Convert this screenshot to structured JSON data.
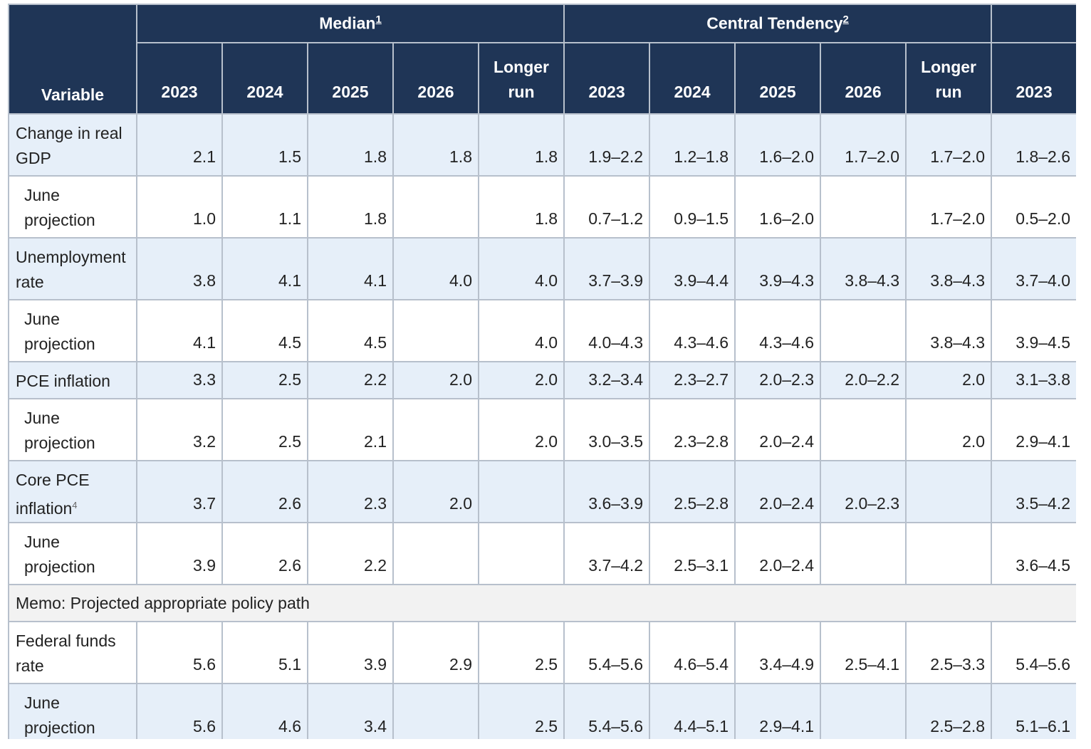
{
  "header": {
    "variable": "Variable",
    "median": "Median",
    "median_note": "1",
    "central": "Central Tendency",
    "central_note": "2",
    "years": [
      "2023",
      "2024",
      "2025",
      "2026",
      "Longer run",
      "2023",
      "2024",
      "2025",
      "2026",
      "Longer run",
      "2023"
    ]
  },
  "rows": [
    {
      "label": "Change in real GDP",
      "values": [
        "2.1",
        "1.5",
        "1.8",
        "1.8",
        "1.8",
        "1.9–2.2",
        "1.2–1.8",
        "1.6–2.0",
        "1.7–2.0",
        "1.7–2.0",
        "1.8–2.6"
      ]
    },
    {
      "label": "June projection",
      "values": [
        "1.0",
        "1.1",
        "1.8",
        "",
        "1.8",
        "0.7–1.2",
        "0.9–1.5",
        "1.6–2.0",
        "",
        "1.7–2.0",
        "0.5–2.0"
      ]
    },
    {
      "label": "Unemployment rate",
      "values": [
        "3.8",
        "4.1",
        "4.1",
        "4.0",
        "4.0",
        "3.7–3.9",
        "3.9–4.4",
        "3.9–4.3",
        "3.8–4.3",
        "3.8–4.3",
        "3.7–4.0"
      ]
    },
    {
      "label": "June projection",
      "values": [
        "4.1",
        "4.5",
        "4.5",
        "",
        "4.0",
        "4.0–4.3",
        "4.3–4.6",
        "4.3–4.6",
        "",
        "3.8–4.3",
        "3.9–4.5"
      ]
    },
    {
      "label": "PCE inflation",
      "values": [
        "3.3",
        "2.5",
        "2.2",
        "2.0",
        "2.0",
        "3.2–3.4",
        "2.3–2.7",
        "2.0–2.3",
        "2.0–2.2",
        "2.0",
        "3.1–3.8"
      ]
    },
    {
      "label": "June projection",
      "values": [
        "3.2",
        "2.5",
        "2.1",
        "",
        "2.0",
        "3.0–3.5",
        "2.3–2.8",
        "2.0–2.4",
        "",
        "2.0",
        "2.9–4.1"
      ]
    },
    {
      "label": "Core PCE inflation",
      "note": "4",
      "values": [
        "3.7",
        "2.6",
        "2.3",
        "2.0",
        "",
        "3.6–3.9",
        "2.5–2.8",
        "2.0–2.4",
        "2.0–2.3",
        "",
        "3.5–4.2"
      ]
    },
    {
      "label": "June projection",
      "values": [
        "3.9",
        "2.6",
        "2.2",
        "",
        "",
        "3.7–4.2",
        "2.5–3.1",
        "2.0–2.4",
        "",
        "",
        "3.6–4.5"
      ]
    }
  ],
  "memo": "Memo: Projected appropriate policy path",
  "rows2": [
    {
      "label": "Federal funds rate",
      "values": [
        "5.6",
        "5.1",
        "3.9",
        "2.9",
        "2.5",
        "5.4–5.6",
        "4.6–5.4",
        "3.4–4.9",
        "2.5–4.1",
        "2.5–3.3",
        "5.4–5.6"
      ]
    },
    {
      "label": "June projection",
      "values": [
        "5.6",
        "4.6",
        "3.4",
        "",
        "2.5",
        "5.4–5.6",
        "4.4–5.1",
        "2.9–4.1",
        "",
        "2.5–2.8",
        "5.1–6.1"
      ]
    }
  ]
}
